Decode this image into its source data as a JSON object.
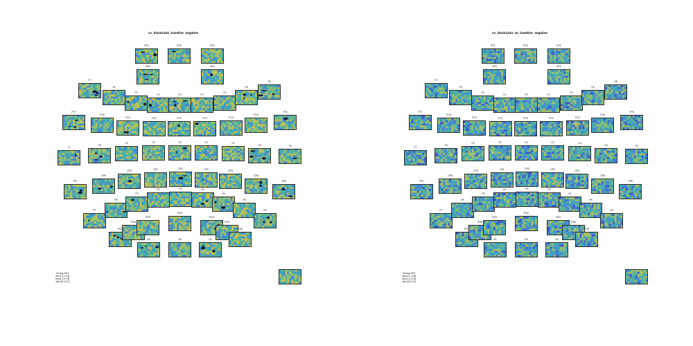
{
  "panels": [
    {
      "id": "left",
      "title": "sx_block1234_baseline_negative",
      "info": [
        "29-Aug-2019",
        "xlim=[-0.1 0.8]",
        "zlim=[-2.5 2.5]",
        "ylim=[0.2 0.4]"
      ],
      "palette_bias": 0.62,
      "dark_blobs": true
    },
    {
      "id": "right",
      "title": "sx_block1234_rw_baseline_negative",
      "info": [
        "29-Aug-2019",
        "xlim=[-0.1 0.8]",
        "zlim=[-2.5 2.5]",
        "ylim=[0.2 0.4]"
      ],
      "palette_bias": 0.42,
      "dark_blobs": false
    }
  ],
  "colors": {
    "blue_dark": "#3b4fc9",
    "blue": "#4a84d6",
    "teal": "#3fa8b8",
    "green": "#6ab88a",
    "yellow_green": "#b5c45c",
    "yellow": "#e0c83a",
    "blob": "#0e1a3a"
  },
  "channels": [
    {
      "name": "FP1"
    },
    {
      "name": "FPZ"
    },
    {
      "name": "FP2"
    },
    {
      "name": "AF3"
    },
    {
      "name": "AF4"
    },
    {
      "name": "F7"
    },
    {
      "name": "F5"
    },
    {
      "name": "F3"
    },
    {
      "name": "F1"
    },
    {
      "name": "FZ"
    },
    {
      "name": "F2"
    },
    {
      "name": "F4"
    },
    {
      "name": "F6"
    },
    {
      "name": "F8"
    },
    {
      "name": "FT7"
    },
    {
      "name": "FC5"
    },
    {
      "name": "FC3"
    },
    {
      "name": "FC1"
    },
    {
      "name": "FCZ"
    },
    {
      "name": "FC2"
    },
    {
      "name": "FC4"
    },
    {
      "name": "FC6"
    },
    {
      "name": "FT8"
    },
    {
      "name": "T7"
    },
    {
      "name": "C5"
    },
    {
      "name": "C3"
    },
    {
      "name": "C1"
    },
    {
      "name": "CZ"
    },
    {
      "name": "C2"
    },
    {
      "name": "C4"
    },
    {
      "name": "C6"
    },
    {
      "name": "T8"
    },
    {
      "name": "TP7"
    },
    {
      "name": "CP5"
    },
    {
      "name": "CP3"
    },
    {
      "name": "CP1"
    },
    {
      "name": "CPZ"
    },
    {
      "name": "CP2"
    },
    {
      "name": "CP4"
    },
    {
      "name": "CP6"
    },
    {
      "name": "TP8"
    },
    {
      "name": "P7"
    },
    {
      "name": "P5"
    },
    {
      "name": "P3"
    },
    {
      "name": "P1"
    },
    {
      "name": "PZ"
    },
    {
      "name": "P2"
    },
    {
      "name": "P4"
    },
    {
      "name": "P6"
    },
    {
      "name": "P8"
    },
    {
      "name": "PO7"
    },
    {
      "name": "PO5"
    },
    {
      "name": "PO3"
    },
    {
      "name": "POZ"
    },
    {
      "name": "PO4"
    },
    {
      "name": "PO6"
    },
    {
      "name": "PO8"
    },
    {
      "name": "O1"
    },
    {
      "name": "OZ"
    },
    {
      "name": "O2"
    },
    {
      "name": ""
    }
  ]
}
